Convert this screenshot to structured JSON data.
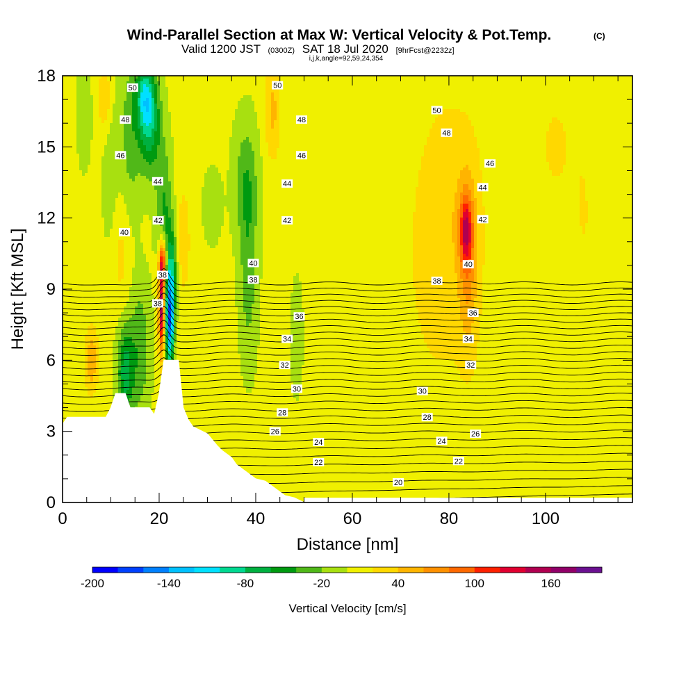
{
  "header": {
    "title": "Wind-Parallel Section at Max W: Vertical Velocity & Pot.Temp.",
    "title_mark": "(C)",
    "valid_prefix": "Valid 1200 JST",
    "valid_utc": "(0300Z)",
    "valid_date": "SAT 18 Jul 2020",
    "forecast": "[9hrFcst@2232z]",
    "indices": "i,j,k,angle=92,59,24,354"
  },
  "chart_data": {
    "type": "heatmap",
    "xlabel": "Distance [nm]",
    "ylabel": "Height [Kft MSL]",
    "xlim": [
      0,
      118
    ],
    "ylim": [
      0,
      18
    ],
    "x_ticks": [
      "0",
      "20",
      "40",
      "60",
      "80",
      "100"
    ],
    "x_tick_values": [
      0,
      20,
      40,
      60,
      80,
      100
    ],
    "y_ticks": [
      "0",
      "3",
      "6",
      "9",
      "12",
      "15",
      "18"
    ],
    "y_tick_values": [
      0,
      3,
      6,
      9,
      12,
      15,
      18
    ],
    "colorbar": {
      "title": "Vertical Velocity [cm/s]",
      "tick_labels": [
        "-200",
        "-140",
        "-80",
        "-20",
        "40",
        "100",
        "160"
      ],
      "tick_values": [
        -200,
        -140,
        -80,
        -20,
        40,
        100,
        160
      ],
      "levels": [
        -200,
        -180,
        -160,
        -140,
        -120,
        -100,
        -80,
        -60,
        -40,
        -20,
        0,
        20,
        40,
        60,
        80,
        100,
        120,
        140,
        160,
        180
      ],
      "colors": [
        "#0000ff",
        "#0040ff",
        "#0080ff",
        "#00c0ff",
        "#00e0ff",
        "#00d890",
        "#00b040",
        "#009a10",
        "#50b818",
        "#a8e010",
        "#f0f000",
        "#ffd800",
        "#ffb400",
        "#ff9000",
        "#ff6800",
        "#ff2000",
        "#e00030",
        "#b00050",
        "#900068",
        "#6a1090"
      ]
    },
    "background_velocity": 5,
    "velocity_features": [
      {
        "x": 20.5,
        "y": 8.3,
        "sx": 0.45,
        "sy": 1.4,
        "w": 150
      },
      {
        "x": 20.8,
        "y": 10.2,
        "sx": 0.6,
        "sy": 0.6,
        "w": 90
      },
      {
        "x": 22.2,
        "y": 7.6,
        "sx": 0.6,
        "sy": 1.4,
        "w": -150
      },
      {
        "x": 22.6,
        "y": 9.8,
        "sx": 0.8,
        "sy": 1.4,
        "w": -70
      },
      {
        "x": 21.0,
        "y": 12.5,
        "sx": 1.2,
        "sy": 1.8,
        "w": -45
      },
      {
        "x": 18.0,
        "y": 16.0,
        "sx": 1.6,
        "sy": 1.5,
        "w": -80
      },
      {
        "x": 17.0,
        "y": 17.2,
        "sx": 1.3,
        "sy": 1.0,
        "w": -70
      },
      {
        "x": 14.0,
        "y": 15.5,
        "sx": 1.5,
        "sy": 2.5,
        "w": -35
      },
      {
        "x": 10.0,
        "y": 15.0,
        "sx": 1.2,
        "sy": 3.0,
        "w": -25
      },
      {
        "x": 4.5,
        "y": 16.5,
        "sx": 1.0,
        "sy": 1.5,
        "w": -25
      },
      {
        "x": 13.0,
        "y": 5.5,
        "sx": 1.2,
        "sy": 1.4,
        "w": -75
      },
      {
        "x": 16.0,
        "y": 6.5,
        "sx": 1.5,
        "sy": 2.0,
        "w": -40
      },
      {
        "x": 38.0,
        "y": 13.5,
        "sx": 1.8,
        "sy": 1.8,
        "w": -40
      },
      {
        "x": 38.5,
        "y": 9.5,
        "sx": 1.3,
        "sy": 2.5,
        "w": -35
      },
      {
        "x": 48.5,
        "y": 7.0,
        "sx": 0.8,
        "sy": 1.5,
        "w": -25
      },
      {
        "x": 31.0,
        "y": 12.5,
        "sx": 1.5,
        "sy": 1.2,
        "w": -15
      },
      {
        "x": 83.5,
        "y": 11.5,
        "sx": 0.9,
        "sy": 1.0,
        "w": 90
      },
      {
        "x": 84.0,
        "y": 10.0,
        "sx": 1.3,
        "sy": 2.5,
        "w": 45
      },
      {
        "x": 80.5,
        "y": 12.5,
        "sx": 5.0,
        "sy": 3.5,
        "w": 25
      },
      {
        "x": 77.0,
        "y": 8.0,
        "sx": 8.0,
        "sy": 5.0,
        "w": 12
      },
      {
        "x": 6.0,
        "y": 6.0,
        "sx": 1.0,
        "sy": 1.0,
        "w": 50
      },
      {
        "x": 9.0,
        "y": 17.0,
        "sx": 1.2,
        "sy": 1.2,
        "w": 40
      },
      {
        "x": 43.5,
        "y": 16.5,
        "sx": 1.2,
        "sy": 1.5,
        "w": 40
      },
      {
        "x": 25.0,
        "y": 11.0,
        "sx": 1.2,
        "sy": 2.0,
        "w": 25
      },
      {
        "x": 12.0,
        "y": 10.5,
        "sx": 1.5,
        "sy": 2.0,
        "w": 22
      },
      {
        "x": 102.0,
        "y": 15.0,
        "sx": 3.0,
        "sy": 2.0,
        "w": 18
      },
      {
        "x": 108.0,
        "y": 12.0,
        "sx": 2.0,
        "sy": 3.0,
        "w": 15
      }
    ],
    "terrain": [
      [
        0,
        3.3
      ],
      [
        1,
        3.6
      ],
      [
        9,
        3.6
      ],
      [
        10,
        4.0
      ],
      [
        11,
        4.6
      ],
      [
        13,
        4.6
      ],
      [
        14,
        4.0
      ],
      [
        18,
        4.0
      ],
      [
        19,
        3.7
      ],
      [
        20,
        4.6
      ],
      [
        21,
        6.0
      ],
      [
        24,
        6.0
      ],
      [
        25,
        4.0
      ],
      [
        26,
        3.5
      ],
      [
        27,
        3.2
      ],
      [
        30,
        2.9
      ],
      [
        32,
        2.4
      ],
      [
        33,
        2.2
      ],
      [
        35,
        1.9
      ],
      [
        36,
        1.6
      ],
      [
        38,
        1.3
      ],
      [
        40,
        1.0
      ],
      [
        42,
        0.9
      ],
      [
        44,
        0.6
      ],
      [
        46,
        0.3
      ],
      [
        48,
        0.2
      ],
      [
        50,
        0.0
      ]
    ],
    "isentrope_levels": [
      20,
      21,
      22,
      23,
      24,
      25,
      26,
      27,
      28,
      29,
      30,
      31,
      32,
      33,
      34,
      35,
      36,
      37,
      38,
      39,
      40,
      41,
      42,
      43,
      44,
      45,
      46,
      47,
      48,
      49,
      50,
      51
    ],
    "isentrope_labels": [
      {
        "text": "20",
        "x": 69.5,
        "y": 0.85
      },
      {
        "text": "22",
        "x": 53.0,
        "y": 1.7
      },
      {
        "text": "22",
        "x": 82.0,
        "y": 1.75
      },
      {
        "text": "24",
        "x": 53.0,
        "y": 2.55
      },
      {
        "text": "24",
        "x": 78.5,
        "y": 2.6
      },
      {
        "text": "26",
        "x": 44.0,
        "y": 3.0
      },
      {
        "text": "26",
        "x": 85.5,
        "y": 2.9
      },
      {
        "text": "28",
        "x": 45.5,
        "y": 3.8
      },
      {
        "text": "28",
        "x": 75.5,
        "y": 3.6
      },
      {
        "text": "30",
        "x": 48.5,
        "y": 4.8
      },
      {
        "text": "30",
        "x": 74.5,
        "y": 4.7
      },
      {
        "text": "32",
        "x": 46.0,
        "y": 5.8
      },
      {
        "text": "32",
        "x": 84.5,
        "y": 5.8
      },
      {
        "text": "34",
        "x": 46.5,
        "y": 6.9
      },
      {
        "text": "34",
        "x": 84.0,
        "y": 6.9
      },
      {
        "text": "36",
        "x": 49.0,
        "y": 7.85
      },
      {
        "text": "36",
        "x": 85.0,
        "y": 8.0
      },
      {
        "text": "38",
        "x": 39.5,
        "y": 9.4
      },
      {
        "text": "38",
        "x": 77.5,
        "y": 9.35
      },
      {
        "text": "38",
        "x": 19.7,
        "y": 8.4
      },
      {
        "text": "38",
        "x": 20.7,
        "y": 9.6
      },
      {
        "text": "40",
        "x": 39.5,
        "y": 10.1
      },
      {
        "text": "40",
        "x": 84.0,
        "y": 10.05
      },
      {
        "text": "40",
        "x": 12.8,
        "y": 11.4
      },
      {
        "text": "42",
        "x": 46.5,
        "y": 11.9
      },
      {
        "text": "42",
        "x": 87.0,
        "y": 11.95
      },
      {
        "text": "42",
        "x": 19.8,
        "y": 11.9
      },
      {
        "text": "44",
        "x": 46.5,
        "y": 13.45
      },
      {
        "text": "44",
        "x": 87.0,
        "y": 13.3
      },
      {
        "text": "44",
        "x": 19.7,
        "y": 13.55
      },
      {
        "text": "46",
        "x": 49.5,
        "y": 14.65
      },
      {
        "text": "46",
        "x": 88.5,
        "y": 14.3
      },
      {
        "text": "46",
        "x": 12.0,
        "y": 14.65
      },
      {
        "text": "48",
        "x": 49.5,
        "y": 16.15
      },
      {
        "text": "48",
        "x": 79.5,
        "y": 15.6
      },
      {
        "text": "48",
        "x": 13.0,
        "y": 16.15
      },
      {
        "text": "50",
        "x": 44.5,
        "y": 17.6
      },
      {
        "text": "50",
        "x": 77.5,
        "y": 16.55
      },
      {
        "text": "50",
        "x": 14.5,
        "y": 17.5
      }
    ]
  }
}
